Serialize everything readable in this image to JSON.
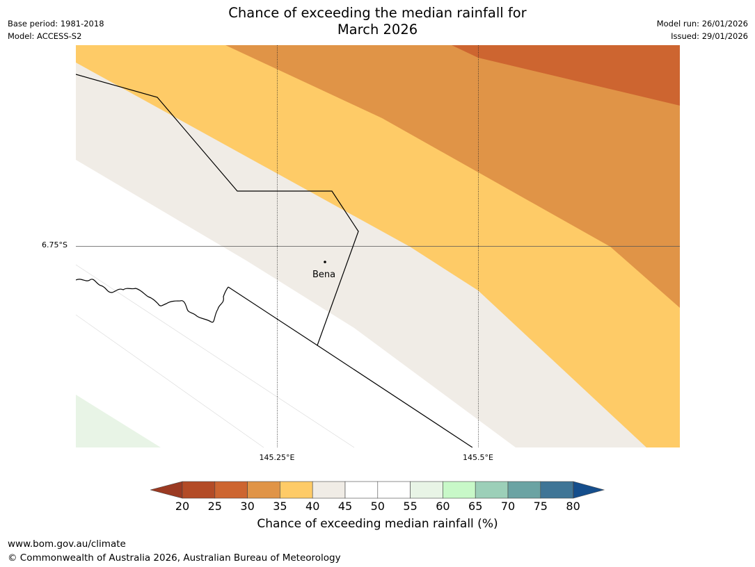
{
  "header": {
    "title_line1": "Chance of exceeding the median rainfall for",
    "title_line2": "March 2026",
    "base_period": "Base period: 1981-2018",
    "model": "Model: ACCESS-S2",
    "model_run": "Model run: 26/01/2026",
    "issued": "Issued: 29/01/2026"
  },
  "map": {
    "latitude_labels": [
      "6.75°S"
    ],
    "longitude_labels": [
      "145.25°E",
      "145.5°E"
    ],
    "place_label": "Bena",
    "band_colors": {
      "p25_30": "#cd6530",
      "p30_35": "#e09447",
      "p35_40": "#fecb67",
      "p40_45": "#f0ece6",
      "p45_55": "#ffffff",
      "p55_60": "#e8f4e6"
    }
  },
  "colorbar": {
    "ticks": [
      "20",
      "25",
      "30",
      "35",
      "40",
      "45",
      "50",
      "55",
      "60",
      "65",
      "70",
      "75",
      "80"
    ],
    "bins": [
      {
        "range": "20-25",
        "color": "#b34b26"
      },
      {
        "range": "25-30",
        "color": "#cd6530"
      },
      {
        "range": "30-35",
        "color": "#e09447"
      },
      {
        "range": "35-40",
        "color": "#fecb67"
      },
      {
        "range": "40-45",
        "color": "#f0ece6"
      },
      {
        "range": "45-50",
        "color": "#ffffff"
      },
      {
        "range": "50-55",
        "color": "#ffffff"
      },
      {
        "range": "55-60",
        "color": "#e8f4e6"
      },
      {
        "range": "60-65",
        "color": "#c8f8c8"
      },
      {
        "range": "65-70",
        "color": "#9ccfb8"
      },
      {
        "range": "70-75",
        "color": "#6ba3a3"
      },
      {
        "range": "75-80",
        "color": "#3f7596"
      }
    ],
    "under_color": "#9b3a22",
    "over_color": "#154e8c",
    "label": "Chance of exceeding median rainfall (%)"
  },
  "footer": {
    "website": "www.bom.gov.au/climate",
    "copyright": "© Commonwealth of Australia 2026, Australian Bureau of Meteorology"
  }
}
